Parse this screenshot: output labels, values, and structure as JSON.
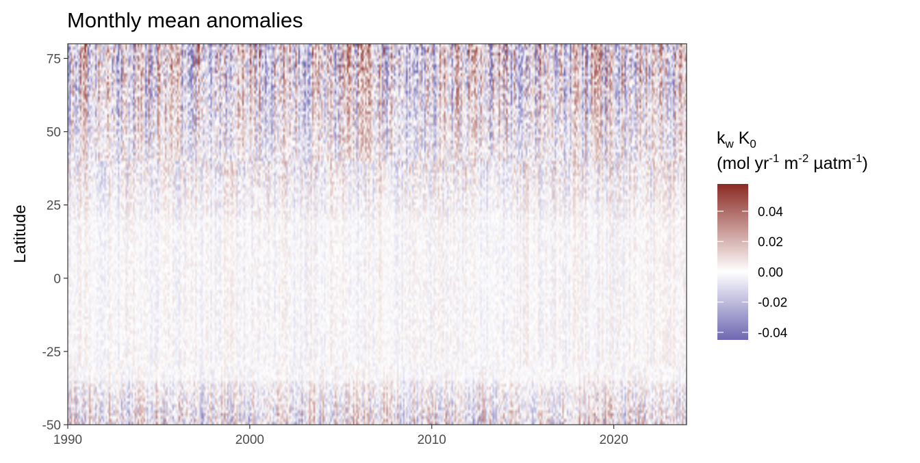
{
  "chart_data": {
    "type": "heatmap",
    "title": "Monthly mean anomalies",
    "xlabel": "",
    "ylabel": "Latitude",
    "x_range": [
      1990,
      2024
    ],
    "y_range": [
      -50,
      80
    ],
    "x_ticks": [
      {
        "value": 1990,
        "label": "1990"
      },
      {
        "value": 2000,
        "label": "2000"
      },
      {
        "value": 2010,
        "label": "2010"
      },
      {
        "value": 2020,
        "label": "2020"
      }
    ],
    "y_ticks": [
      {
        "value": 75,
        "label": "75"
      },
      {
        "value": 50,
        "label": "50"
      },
      {
        "value": 25,
        "label": "25"
      },
      {
        "value": 0,
        "label": "0"
      },
      {
        "value": -25,
        "label": "-25"
      },
      {
        "value": -50,
        "label": "-50"
      }
    ],
    "legend": {
      "title_line1": {
        "k": "k",
        "k_sub": "w",
        "K": " K",
        "K_sub": "0"
      },
      "title_line2": [
        {
          "text": "(mol yr",
          "sup": false
        },
        {
          "text": "-1",
          "sup": true
        },
        {
          "text": " m",
          "sup": false
        },
        {
          "text": "-2",
          "sup": true
        },
        {
          "text": " µatm",
          "sup": false
        },
        {
          "text": "-1",
          "sup": true
        },
        {
          "text": ")",
          "sup": false
        }
      ],
      "range": [
        -0.045,
        0.058
      ],
      "breaks": [
        {
          "value": 0.04,
          "label": "0.04"
        },
        {
          "value": 0.02,
          "label": "0.02"
        },
        {
          "value": 0.0,
          "label": "0.00"
        },
        {
          "value": -0.02,
          "label": "-0.02"
        },
        {
          "value": -0.04,
          "label": "-0.04"
        }
      ],
      "colors": {
        "low": "#6e67b2",
        "mid": "#ffffff",
        "high": "#8b2a23"
      },
      "placement": "right"
    },
    "grid": false,
    "resolution": {
      "time_step": "monthly",
      "lat_step_deg": 1
    },
    "field_description": "dense month-by-latitude anomaly field; strongest variability north of ~55°N and south of ~35°S, weak near equator"
  }
}
